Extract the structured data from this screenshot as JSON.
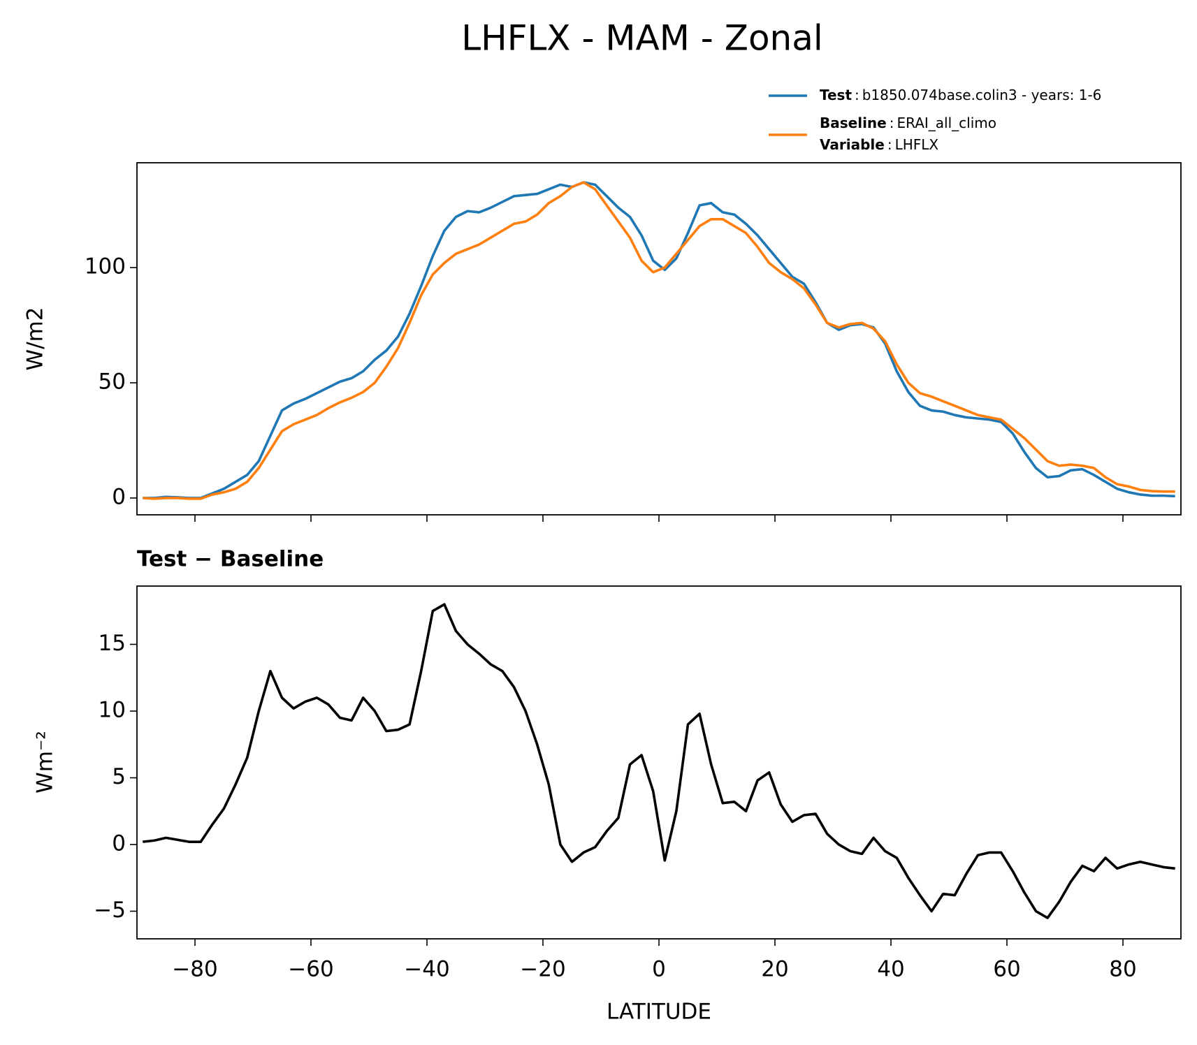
{
  "chart_data": [
    {
      "type": "line",
      "title": "LHFLX - MAM - Zonal",
      "ylabel": "W/m2",
      "x": [
        -89,
        -87,
        -85,
        -83,
        -81,
        -79,
        -77,
        -75,
        -73,
        -71,
        -69,
        -67,
        -65,
        -63,
        -61,
        -59,
        -57,
        -55,
        -53,
        -51,
        -49,
        -47,
        -45,
        -43,
        -41,
        -39,
        -37,
        -35,
        -33,
        -31,
        -29,
        -27,
        -25,
        -23,
        -21,
        -19,
        -17,
        -15,
        -13,
        -11,
        -9,
        -7,
        -5,
        -3,
        -1,
        1,
        3,
        5,
        7,
        9,
        11,
        13,
        15,
        17,
        19,
        21,
        23,
        25,
        27,
        29,
        31,
        33,
        35,
        37,
        39,
        41,
        43,
        45,
        47,
        49,
        51,
        53,
        55,
        57,
        59,
        61,
        63,
        65,
        67,
        69,
        71,
        73,
        75,
        77,
        79,
        81,
        83,
        85,
        87,
        89
      ],
      "series": [
        {
          "name": "Test",
          "label": "b1850.074base.colin3 - years: 1-6",
          "color": "#1f77b4",
          "values": [
            0,
            0,
            0.5,
            0.3,
            0,
            0,
            2,
            4,
            7,
            10,
            16,
            27,
            38,
            41,
            43,
            45.5,
            48,
            50.5,
            52,
            55,
            60,
            64,
            70,
            80,
            92,
            105,
            116,
            122,
            124.5,
            124,
            126,
            128.5,
            131,
            131.5,
            132,
            134,
            136,
            135,
            137,
            136,
            131,
            126,
            122,
            114,
            103,
            99,
            104,
            115,
            127,
            128,
            124,
            123,
            119,
            114,
            108,
            102,
            96,
            93,
            85,
            76,
            73,
            75,
            75.5,
            74,
            67,
            55,
            46,
            40,
            38,
            37.5,
            36,
            35,
            34.5,
            34,
            33,
            28,
            20,
            13,
            9,
            9.5,
            12,
            12.5,
            10,
            7,
            4,
            2.5,
            1.5,
            1,
            1,
            0.8
          ]
        },
        {
          "name": "Baseline",
          "label": "ERAI_all_climo",
          "color": "#ff7f0e",
          "values": [
            0,
            -0.3,
            0,
            0,
            -0.3,
            -0.3,
            1.5,
            2.5,
            4,
            7,
            13,
            21,
            29,
            32,
            34,
            36,
            39,
            41.5,
            43.5,
            46,
            50,
            57,
            65,
            76,
            88,
            97,
            102,
            106,
            108,
            110,
            113,
            116,
            119,
            120,
            123,
            128,
            131,
            135,
            137,
            134,
            127,
            120,
            113,
            103,
            98,
            100,
            106,
            112,
            118,
            121,
            121,
            118,
            115,
            109,
            102,
            98,
            95,
            91,
            84,
            76,
            74,
            75.5,
            76,
            73.5,
            68,
            58,
            50,
            45.5,
            44,
            42,
            40,
            38,
            36,
            35,
            34,
            30,
            26,
            21,
            16,
            14,
            14.5,
            14,
            13,
            9,
            6,
            5,
            3.5,
            3,
            2.8,
            2.8
          ]
        }
      ],
      "variable": {
        "name": "Variable",
        "label": "LHFLX"
      },
      "xlim": [
        -90,
        90
      ],
      "xticks": [
        -80,
        -60,
        -40,
        -20,
        0,
        20,
        40,
        60,
        80
      ],
      "ylim": [
        -7.3,
        145.5
      ],
      "yticks": [
        0,
        50,
        100
      ]
    },
    {
      "type": "line",
      "title": "Test − Baseline",
      "xlabel": "LATITUDE",
      "ylabel": "Wm⁻²",
      "x": [
        -89,
        -87,
        -85,
        -83,
        -81,
        -79,
        -77,
        -75,
        -73,
        -71,
        -69,
        -67,
        -65,
        -63,
        -61,
        -59,
        -57,
        -55,
        -53,
        -51,
        -49,
        -47,
        -45,
        -43,
        -41,
        -39,
        -37,
        -35,
        -33,
        -31,
        -29,
        -27,
        -25,
        -23,
        -21,
        -19,
        -17,
        -15,
        -13,
        -11,
        -9,
        -7,
        -5,
        -3,
        -1,
        1,
        3,
        5,
        7,
        9,
        11,
        13,
        15,
        17,
        19,
        21,
        23,
        25,
        27,
        29,
        31,
        33,
        35,
        37,
        39,
        41,
        43,
        45,
        47,
        49,
        51,
        53,
        55,
        57,
        59,
        61,
        63,
        65,
        67,
        69,
        71,
        73,
        75,
        77,
        79,
        81,
        83,
        85,
        87,
        89
      ],
      "series": [
        {
          "color": "#000000",
          "values": [
            0.2,
            0.3,
            0.5,
            0.35,
            0.2,
            0.2,
            1.5,
            2.7,
            4.5,
            6.5,
            10,
            13,
            11,
            10.2,
            10.7,
            11,
            10.5,
            9.5,
            9.3,
            11,
            10,
            8.5,
            8.6,
            9,
            13,
            17.5,
            18,
            16,
            15,
            14.3,
            13.5,
            13,
            11.8,
            10,
            7.5,
            4.5,
            0,
            -1.3,
            -0.6,
            -0.2,
            1,
            2,
            6,
            6.7,
            4,
            -1.2,
            2.5,
            9,
            9.8,
            6,
            3.1,
            3.2,
            2.5,
            4.8,
            5.4,
            3,
            1.7,
            2.2,
            2.3,
            0.8,
            0,
            -0.5,
            -0.7,
            0.5,
            -0.5,
            -1,
            -2.5,
            -3.8,
            -5,
            -3.7,
            -3.8,
            -2.2,
            -0.8,
            -0.6,
            -0.6,
            -2,
            -3.6,
            -5,
            -5.5,
            -4.3,
            -2.8,
            -1.6,
            -2,
            -1,
            -1.8,
            -1.5,
            -1.3,
            -1.5,
            -1.7,
            -1.8
          ]
        }
      ],
      "xlim": [
        -90,
        90
      ],
      "xticks": [
        {
          "value": -80,
          "label": "−80"
        },
        {
          "value": -60,
          "label": "−60"
        },
        {
          "value": -40,
          "label": "−40"
        },
        {
          "value": -20,
          "label": "−20"
        },
        0,
        20,
        40,
        60,
        80
      ],
      "ylim": [
        -7.07,
        19.37
      ],
      "yticks": [
        {
          "value": -5,
          "label": "−5"
        },
        0,
        5,
        10,
        15
      ]
    }
  ]
}
